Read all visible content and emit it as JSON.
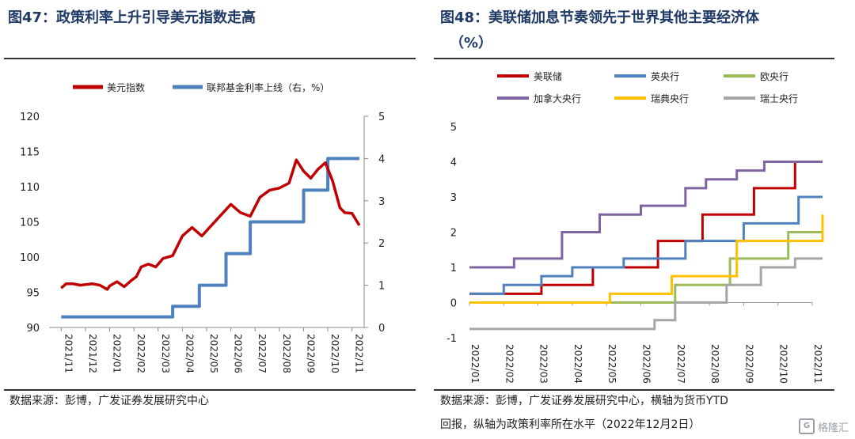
{
  "left_panel": {
    "title": "图47：政策利率上升引导美元指数走高",
    "source": "数据来源：彭博，广发证券发展研究中心"
  },
  "right_panel": {
    "title_line1": "图48：美联储加息节奏领先于世界其他主要经济体",
    "title_line2": "（%）",
    "source_line1": "数据来源：彭博，广发证券发展研究中心，横轴为货币YTD",
    "source_line2": "回报，纵轴为政策利率所在水平（2022年12月2日）"
  },
  "watermark": {
    "text": "格隆汇",
    "icon": "gelonghui-logo-icon"
  },
  "colors": {
    "red": "#c00000",
    "blue": "#4f81bd",
    "green": "#9bbb59",
    "purple": "#8064a2",
    "yellow": "#ffc000",
    "gray": "#a6a6a6"
  },
  "chart_data": [
    {
      "type": "line",
      "legend": [
        "美元指数",
        "联邦基金利率上线（右，%）"
      ],
      "x_ticks": [
        "2021/11",
        "2021/12",
        "2022/01",
        "2022/02",
        "2022/03",
        "2022/04",
        "2022/05",
        "2022/06",
        "2022/07",
        "2022/08",
        "2022/09",
        "2022/10",
        "2022/11"
      ],
      "y_left_ticks": [
        "90",
        "95",
        "100",
        "105",
        "110",
        "115",
        "120"
      ],
      "y_left_lim": [
        90,
        120
      ],
      "y_right_ticks": [
        "0",
        "1",
        "2",
        "3",
        "4",
        "5"
      ],
      "y_right_lim": [
        0,
        5
      ],
      "series": [
        {
          "name": "美元指数",
          "axis": "left",
          "color": "#c00000",
          "x": [
            0,
            0.2,
            0.5,
            0.8,
            1.0,
            1.3,
            1.6,
            1.9,
            2.0,
            2.3,
            2.6,
            2.9,
            3.1,
            3.3,
            3.6,
            3.9,
            4.2,
            4.6,
            5.0,
            5.4,
            5.8,
            6.2,
            6.6,
            7.0,
            7.4,
            7.8,
            8.2,
            8.6,
            9.0,
            9.4,
            9.7,
            10.0,
            10.3,
            10.6,
            10.9,
            11.2,
            11.5,
            11.7,
            12.0,
            12.3
          ],
          "y": [
            95.6,
            96.2,
            96.2,
            96.0,
            96.1,
            96.2,
            96.0,
            95.4,
            95.9,
            96.5,
            95.8,
            96.7,
            97.2,
            98.6,
            99.0,
            98.6,
            99.8,
            100.2,
            103.0,
            104.2,
            103.0,
            104.5,
            106.0,
            107.5,
            106.3,
            105.8,
            108.5,
            109.5,
            109.8,
            110.5,
            113.8,
            112.2,
            111.2,
            112.5,
            113.4,
            110.8,
            107.0,
            106.3,
            106.2,
            104.5
          ]
        },
        {
          "name": "联邦基金利率上线（右，%）",
          "axis": "right",
          "color": "#4f81bd",
          "step": true,
          "x": [
            0,
            3.5,
            4.6,
            5.7,
            6.8,
            7.8,
            8.8,
            10.0,
            11.0,
            12.3
          ],
          "y": [
            0.25,
            0.25,
            0.5,
            1.0,
            1.75,
            2.5,
            2.5,
            3.25,
            4.0,
            4.0
          ]
        }
      ]
    },
    {
      "type": "line",
      "legend": [
        "美联储",
        "英央行",
        "欧央行",
        "加拿大央行",
        "瑞典央行",
        "瑞士央行"
      ],
      "x_ticks": [
        "2022/01",
        "2022/02",
        "2022/03",
        "2022/04",
        "2022/05",
        "2022/06",
        "2022/07",
        "2022/08",
        "2022/09",
        "2022/10",
        "2022/11"
      ],
      "y_ticks": [
        "-1",
        "0",
        "1",
        "2",
        "3",
        "4",
        "5"
      ],
      "ylim": [
        -1,
        5
      ],
      "series": [
        {
          "name": "美联储",
          "color": "#c00000",
          "x": [
            0,
            2.1,
            3.6,
            5.5,
            6.8,
            8.3,
            9.5,
            10.3
          ],
          "y": [
            0.25,
            0.5,
            1.0,
            1.75,
            2.5,
            3.25,
            4.0,
            4.0
          ]
        },
        {
          "name": "英央行",
          "color": "#4f81bd",
          "x": [
            0,
            1.0,
            2.1,
            3.0,
            4.5,
            6.3,
            8.0,
            9.6,
            10.3
          ],
          "y": [
            0.25,
            0.5,
            0.75,
            1.0,
            1.25,
            1.75,
            2.25,
            3.0,
            3.0
          ]
        },
        {
          "name": "欧央行",
          "color": "#9bbb59",
          "x": [
            0,
            6.0,
            7.6,
            9.3,
            10.3
          ],
          "y": [
            0,
            0.5,
            1.25,
            2.0,
            2.0
          ]
        },
        {
          "name": "加拿大央行",
          "color": "#8064a2",
          "x": [
            0,
            1.3,
            2.7,
            3.8,
            5.0,
            6.3,
            6.9,
            7.8,
            8.6,
            10.3
          ],
          "y": [
            1.0,
            1.25,
            2.0,
            2.5,
            2.75,
            3.25,
            3.5,
            3.75,
            4.0,
            4.0
          ]
        },
        {
          "name": "瑞典央行",
          "color": "#ffc000",
          "x": [
            0,
            4.1,
            5.9,
            7.8,
            10.2,
            10.3
          ],
          "y": [
            0,
            0.25,
            0.75,
            1.75,
            1.75,
            2.5
          ]
        },
        {
          "name": "瑞士央行",
          "color": "#a6a6a6",
          "x": [
            0,
            5.4,
            6.0,
            7.5,
            8.5,
            9.5,
            10.3
          ],
          "y": [
            -0.75,
            -0.5,
            0,
            0.5,
            1.0,
            1.25,
            1.25
          ]
        }
      ]
    }
  ]
}
